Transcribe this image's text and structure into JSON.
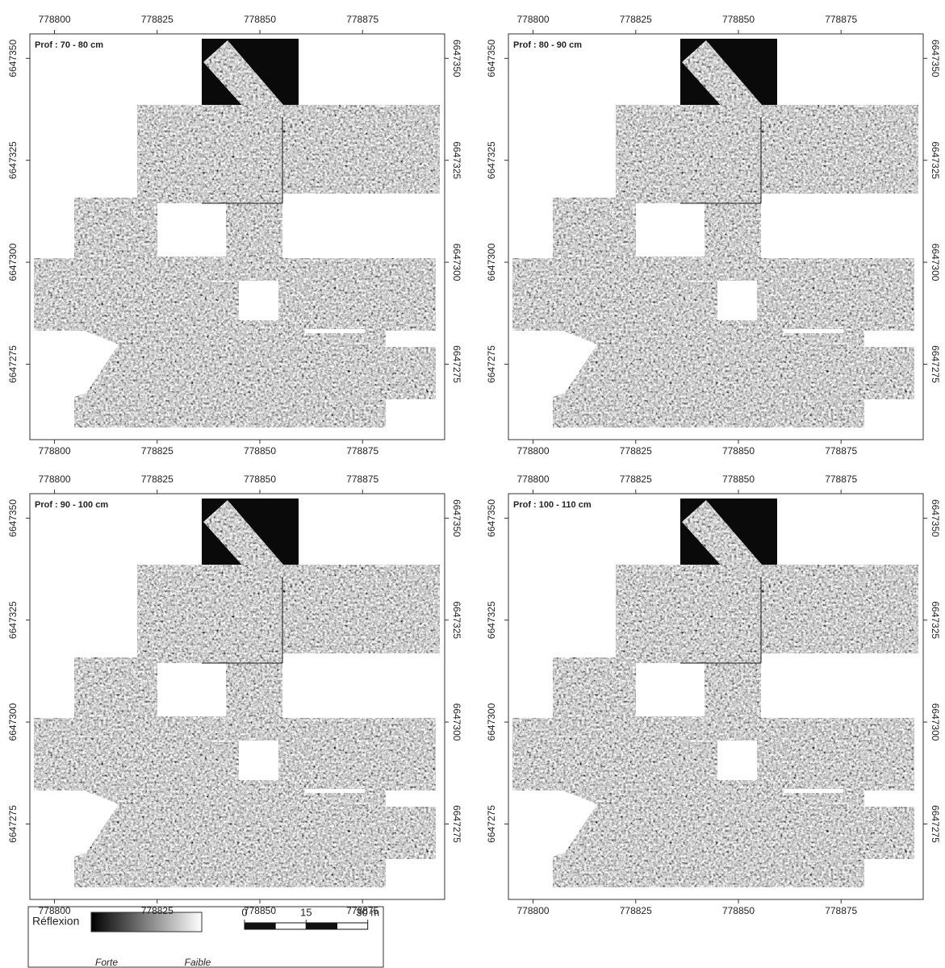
{
  "map": {
    "xlim": [
      778794,
      778895
    ],
    "ylim": [
      6647256.5,
      6647356
    ],
    "xticks": [
      778800,
      778825,
      778850,
      778875
    ],
    "yticks": [
      6647275,
      6647300,
      6647325,
      6647350
    ]
  },
  "panels": [
    {
      "title": "Prof : 70 - 80 cm"
    },
    {
      "title": "Prof : 80 - 90 cm"
    },
    {
      "title": "Prof : 90 - 100 cm"
    },
    {
      "title": "Prof : 100 - 110 cm"
    }
  ],
  "legend": {
    "title": "Réflexion",
    "low": "Forte",
    "high": "Faible"
  },
  "scale_bar": {
    "ticks": [
      0,
      15,
      {
        "value": 30,
        "label": "30 m"
      }
    ]
  }
}
